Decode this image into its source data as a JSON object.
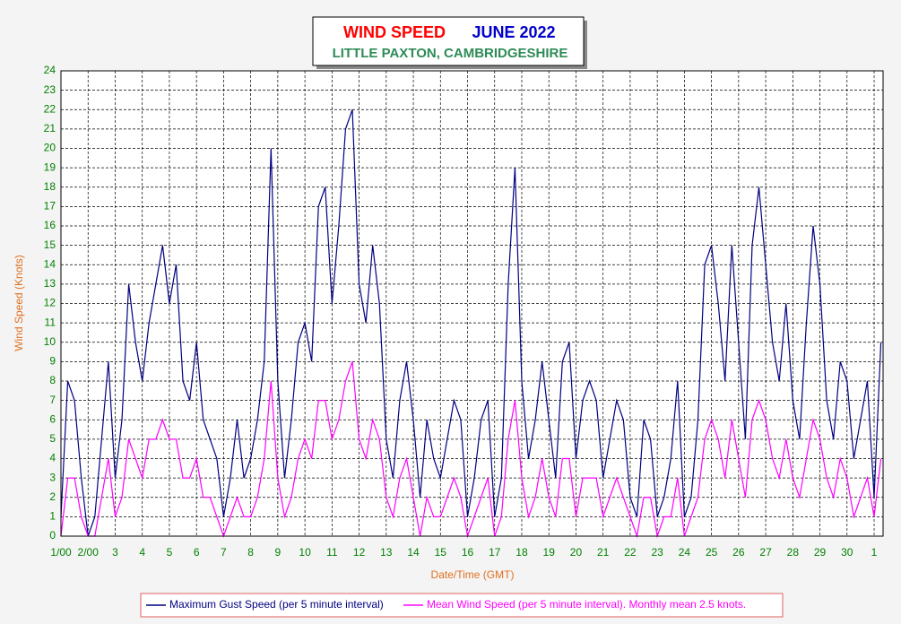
{
  "chart_data": {
    "type": "line",
    "title": "WIND SPEED",
    "period": "JUNE 2022",
    "subtitle": "LITTLE PAXTON, CAMBRIDGESHIRE",
    "x_label": "Date/Time (GMT)",
    "y_label": "Wind Speed (Knots)",
    "x": [
      1,
      1.25,
      1.5,
      1.75,
      2,
      2.25,
      2.5,
      2.75,
      3,
      3.25,
      3.5,
      3.75,
      4,
      4.25,
      4.5,
      4.75,
      5,
      5.25,
      5.5,
      5.75,
      6,
      6.25,
      6.5,
      6.75,
      7,
      7.25,
      7.5,
      7.75,
      8,
      8.25,
      8.5,
      8.75,
      9,
      9.25,
      9.5,
      9.75,
      10,
      10.25,
      10.5,
      10.75,
      11,
      11.25,
      11.5,
      11.75,
      12,
      12.25,
      12.5,
      12.75,
      13,
      13.25,
      13.5,
      13.75,
      14,
      14.25,
      14.5,
      14.75,
      15,
      15.25,
      15.5,
      15.75,
      16,
      16.25,
      16.5,
      16.75,
      17,
      17.25,
      17.5,
      17.75,
      18,
      18.25,
      18.5,
      18.75,
      19,
      19.25,
      19.5,
      19.75,
      20,
      20.25,
      20.5,
      20.75,
      21,
      21.25,
      21.5,
      21.75,
      22,
      22.25,
      22.5,
      22.75,
      23,
      23.25,
      23.5,
      23.75,
      24,
      24.25,
      24.5,
      24.75,
      25,
      25.25,
      25.5,
      25.75,
      26,
      26.25,
      26.5,
      26.75,
      27,
      27.25,
      27.5,
      27.75,
      28,
      28.25,
      28.5,
      28.75,
      29,
      29.25,
      29.5,
      29.75,
      30,
      30.25,
      30.5,
      30.75,
      31,
      31.25
    ],
    "series": [
      {
        "name": "Maximum Gust Speed (per 5 minute interval)",
        "color": "#000080",
        "values": [
          1,
          8,
          7,
          3,
          0,
          1,
          5,
          9,
          3,
          6,
          13,
          10,
          8,
          11,
          13,
          15,
          12,
          14,
          8,
          7,
          10,
          6,
          5,
          4,
          1,
          3,
          6,
          3,
          4,
          6,
          9,
          20,
          8,
          3,
          6,
          10,
          11,
          9,
          17,
          18,
          12,
          16,
          21,
          22,
          13,
          11,
          15,
          12,
          5,
          3,
          7,
          9,
          6,
          2,
          6,
          4,
          3,
          5,
          7,
          6,
          1,
          3,
          6,
          7,
          1,
          3,
          13,
          19,
          8,
          4,
          6,
          9,
          6,
          3,
          9,
          10,
          4,
          7,
          8,
          7,
          3,
          5,
          7,
          6,
          2,
          1,
          6,
          5,
          1,
          2,
          4,
          8,
          1,
          2,
          6,
          14,
          15,
          12,
          8,
          15,
          10,
          5,
          15,
          18,
          14,
          10,
          8,
          12,
          7,
          5,
          11,
          16,
          13,
          7,
          5,
          9,
          8,
          4,
          6,
          8,
          2,
          10
        ]
      },
      {
        "name": "Mean Wind Speed (per 5 minute interval). Monthly mean 2.5 knots.",
        "color": "#ff00ff",
        "values": [
          0,
          3,
          3,
          1,
          0,
          0,
          2,
          4,
          1,
          2,
          5,
          4,
          3,
          5,
          5,
          6,
          5,
          5,
          3,
          3,
          4,
          2,
          2,
          1,
          0,
          1,
          2,
          1,
          1,
          2,
          4,
          8,
          3,
          1,
          2,
          4,
          5,
          4,
          7,
          7,
          5,
          6,
          8,
          9,
          5,
          4,
          6,
          5,
          2,
          1,
          3,
          4,
          2,
          0,
          2,
          1,
          1,
          2,
          3,
          2,
          0,
          1,
          2,
          3,
          0,
          1,
          5,
          7,
          3,
          1,
          2,
          4,
          2,
          1,
          4,
          4,
          1,
          3,
          3,
          3,
          1,
          2,
          3,
          2,
          1,
          0,
          2,
          2,
          0,
          1,
          1,
          3,
          0,
          1,
          2,
          5,
          6,
          5,
          3,
          6,
          4,
          2,
          6,
          7,
          6,
          4,
          3,
          5,
          3,
          2,
          4,
          6,
          5,
          3,
          2,
          4,
          3,
          1,
          2,
          3,
          1,
          4
        ]
      }
    ],
    "xlim": [
      1,
      31.33
    ],
    "xticks": [
      {
        "value": 1,
        "label": "1/00"
      },
      {
        "value": 2,
        "label": "2/00"
      },
      3,
      4,
      5,
      6,
      7,
      8,
      9,
      10,
      11,
      12,
      13,
      14,
      15,
      16,
      17,
      18,
      19,
      20,
      21,
      22,
      23,
      24,
      25,
      26,
      27,
      28,
      29,
      30,
      {
        "value": 31,
        "label": "1"
      }
    ],
    "ylim": [
      0,
      24
    ],
    "yticks": [
      0,
      1,
      2,
      3,
      4,
      5,
      6,
      7,
      8,
      9,
      10,
      11,
      12,
      13,
      14,
      15,
      16,
      17,
      18,
      19,
      20,
      21,
      22,
      23,
      24
    ],
    "grid": true
  }
}
